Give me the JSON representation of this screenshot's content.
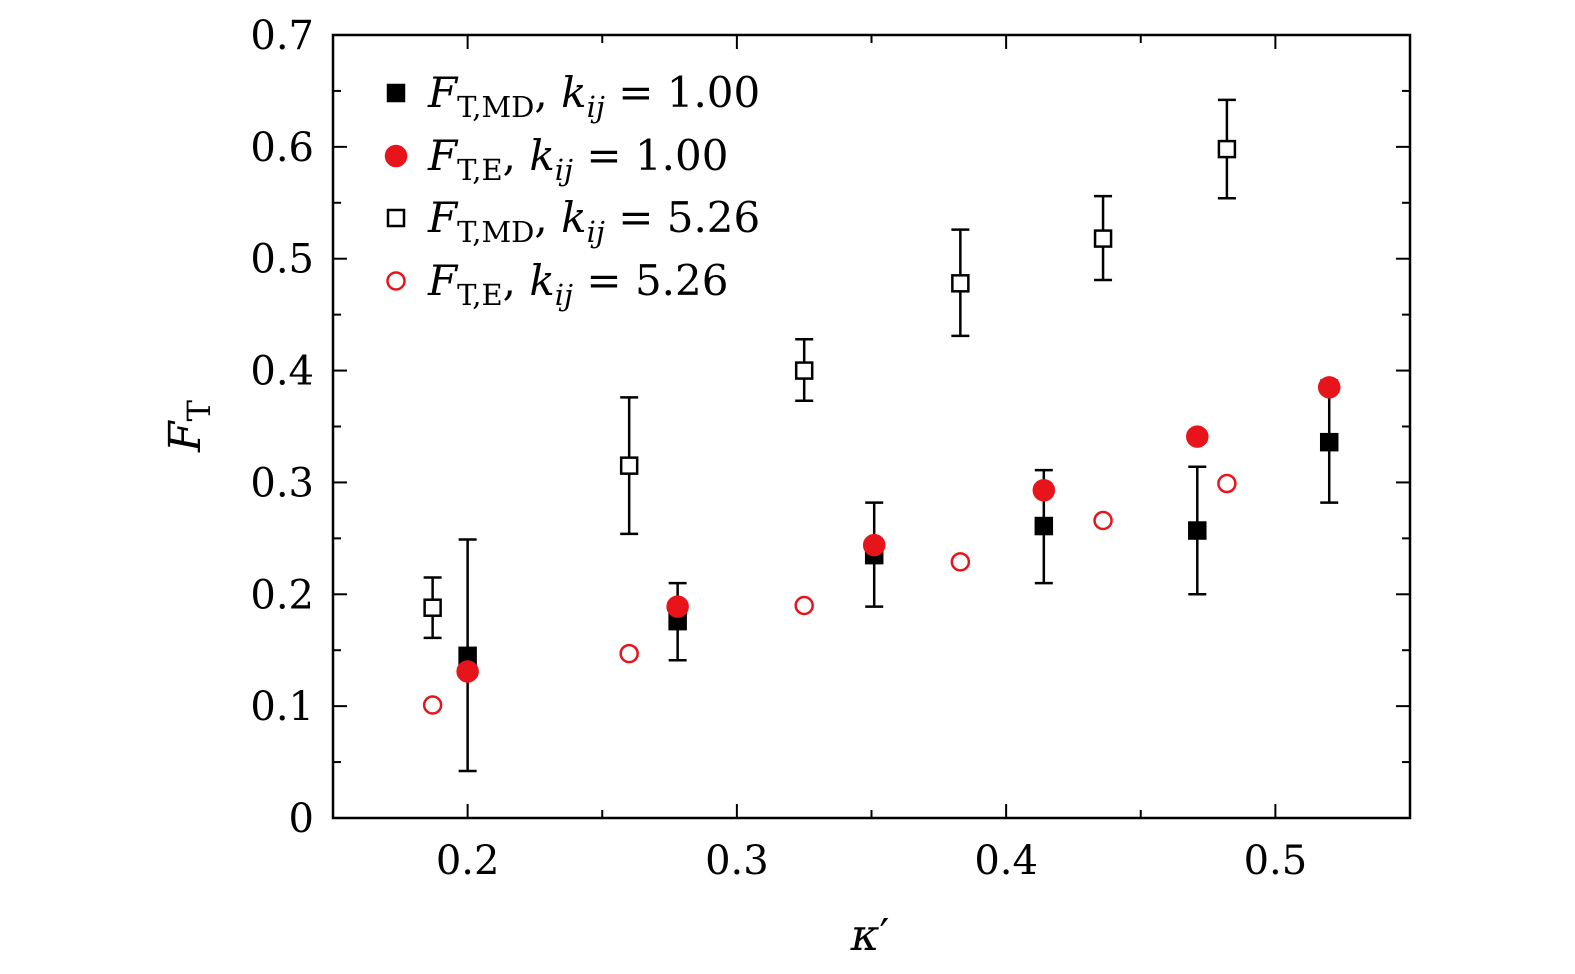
{
  "chart_data": {
    "type": "scatter",
    "title": "",
    "xlabel": {
      "main": "κ",
      "prime": "′"
    },
    "ylabel": {
      "main": "F",
      "sub": "T"
    },
    "xlim": [
      0.15,
      0.55
    ],
    "ylim": [
      0,
      0.7
    ],
    "xticks": [
      0.2,
      0.3,
      0.4,
      0.5
    ],
    "xtick_labels": [
      "0.2",
      "0.3",
      "0.4",
      "0.5"
    ],
    "yticks": [
      0,
      0.1,
      0.2,
      0.3,
      0.4,
      0.5,
      0.6,
      0.7
    ],
    "ytick_labels": [
      "0",
      "0.1",
      "0.2",
      "0.3",
      "0.4",
      "0.5",
      "0.6",
      "0.7"
    ],
    "grid": false,
    "legend_position": "top-left",
    "series": [
      {
        "legend": {
          "F": "F",
          "sub": "T,MD",
          "k": "k",
          "ksub": "ij",
          "value": "= 1.00"
        },
        "marker": "square",
        "filled": true,
        "color": "#000000",
        "points": [
          {
            "x": 0.2,
            "y": 0.145,
            "yerr_low": 0.042,
            "yerr_high": 0.249
          },
          {
            "x": 0.278,
            "y": 0.176,
            "yerr_low": 0.141,
            "yerr_high": 0.21
          },
          {
            "x": 0.351,
            "y": 0.235,
            "yerr_low": 0.189,
            "yerr_high": 0.282
          },
          {
            "x": 0.414,
            "y": 0.261,
            "yerr_low": 0.21,
            "yerr_high": 0.311
          },
          {
            "x": 0.471,
            "y": 0.257,
            "yerr_low": 0.2,
            "yerr_high": 0.314
          },
          {
            "x": 0.52,
            "y": 0.336,
            "yerr_low": 0.282,
            "yerr_high": 0.391
          }
        ]
      },
      {
        "legend": {
          "F": "F",
          "sub": "T,E",
          "k": "k",
          "ksub": "ij",
          "value": "= 1.00"
        },
        "marker": "circle",
        "filled": true,
        "color": "#e8141c",
        "points": [
          {
            "x": 0.2,
            "y": 0.131
          },
          {
            "x": 0.278,
            "y": 0.189
          },
          {
            "x": 0.351,
            "y": 0.244
          },
          {
            "x": 0.414,
            "y": 0.293
          },
          {
            "x": 0.471,
            "y": 0.341
          },
          {
            "x": 0.52,
            "y": 0.385
          }
        ]
      },
      {
        "legend": {
          "F": "F",
          "sub": "T,MD",
          "k": "k",
          "ksub": "ij",
          "value": "= 5.26"
        },
        "marker": "square",
        "filled": false,
        "color": "#000000",
        "points": [
          {
            "x": 0.187,
            "y": 0.188,
            "yerr_low": 0.161,
            "yerr_high": 0.215
          },
          {
            "x": 0.26,
            "y": 0.315,
            "yerr_low": 0.254,
            "yerr_high": 0.376
          },
          {
            "x": 0.325,
            "y": 0.4,
            "yerr_low": 0.373,
            "yerr_high": 0.428
          },
          {
            "x": 0.383,
            "y": 0.478,
            "yerr_low": 0.431,
            "yerr_high": 0.526
          },
          {
            "x": 0.436,
            "y": 0.518,
            "yerr_low": 0.481,
            "yerr_high": 0.556
          },
          {
            "x": 0.482,
            "y": 0.598,
            "yerr_low": 0.554,
            "yerr_high": 0.642
          }
        ]
      },
      {
        "legend": {
          "F": "F",
          "sub": "T,E",
          "k": "k",
          "ksub": "ij",
          "value": "= 5.26"
        },
        "marker": "circle",
        "filled": false,
        "color": "#e8141c",
        "points": [
          {
            "x": 0.187,
            "y": 0.101
          },
          {
            "x": 0.26,
            "y": 0.147
          },
          {
            "x": 0.325,
            "y": 0.19
          },
          {
            "x": 0.383,
            "y": 0.229
          },
          {
            "x": 0.436,
            "y": 0.266
          },
          {
            "x": 0.482,
            "y": 0.299
          }
        ]
      }
    ]
  }
}
